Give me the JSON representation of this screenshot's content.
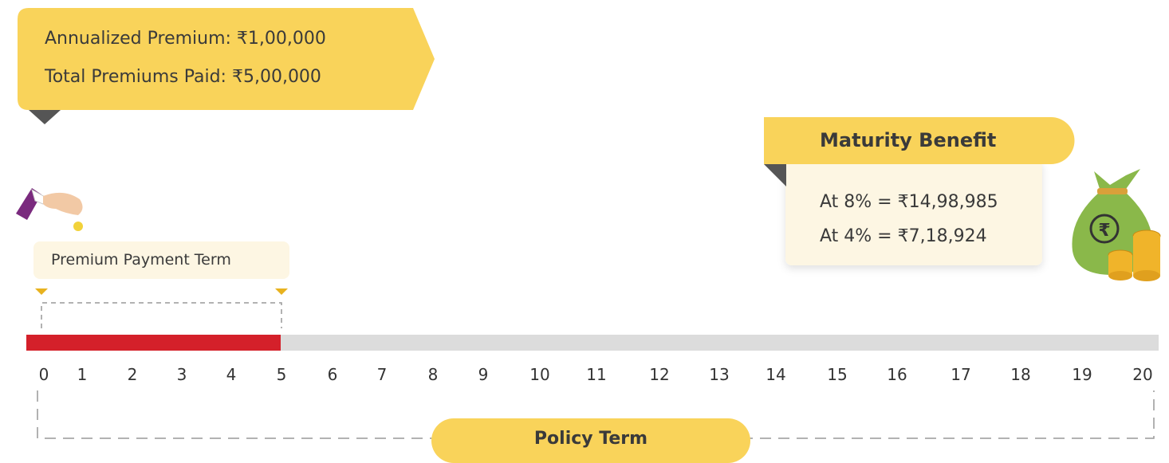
{
  "callout": {
    "annualized_premium": "Annualized Premium: ₹1,00,000",
    "total_premiums_paid": "Total Premiums Paid: ₹5,00,000"
  },
  "premium_payment_term": "Premium Payment Term",
  "maturity": {
    "title": "Maturity Benefit",
    "lines": [
      "At 8% = ₹14,98,985",
      "At 4% = ₹7,18,924"
    ]
  },
  "timeline": {
    "years": [
      0,
      1,
      2,
      3,
      4,
      5,
      6,
      7,
      8,
      9,
      10,
      11,
      12,
      13,
      14,
      15,
      16,
      17,
      18,
      19,
      20
    ]
  },
  "policy_term": "Policy Term"
}
